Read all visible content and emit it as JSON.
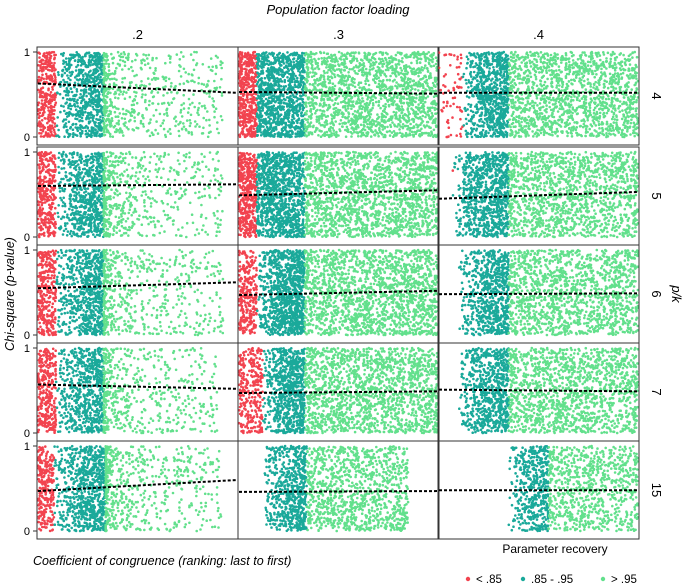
{
  "chart_data": {
    "type": "scatter",
    "layout": "faceted grid: columns = population factor loading, rows = p/k",
    "title_top": "Population factor loading",
    "row_strip_title": "p/k",
    "xlabel": "Coefficient of congruence (ranking: last to first)",
    "ylabel": "Chi-square (p-value)",
    "columns": [
      ".2",
      ".3",
      ".4"
    ],
    "rows": [
      "4",
      "5",
      "6",
      "7",
      "15"
    ],
    "ylim": [
      0,
      1
    ],
    "yticks": [
      "0",
      "1"
    ],
    "trend_line": "dashed black linear fit",
    "colors": {
      "low": "#f2434f",
      "mid": "#1aa99a",
      "high": "#62e08c"
    },
    "legend": {
      "title": "Parameter recovery",
      "position": "bottom-right",
      "entries": [
        {
          "key": "low",
          "label": "< .85"
        },
        {
          "key": "mid",
          "label": ".85 - .95"
        },
        {
          "key": "high",
          "label": "> .95"
        }
      ]
    },
    "panels": [
      {
        "col": ".2",
        "row": "4",
        "points": 2300,
        "red": [
          0.0,
          0.09
        ],
        "mid": [
          0.09,
          0.33
        ],
        "high": [
          0.33,
          0.93
        ],
        "high_falloff": 0.35,
        "mid_jitter": 0.03,
        "red_density": 1,
        "line": [
          0.63,
          0.52
        ]
      },
      {
        "col": ".3",
        "row": "4",
        "points": 3200,
        "red": [
          0.0,
          0.09
        ],
        "mid": [
          0.09,
          0.33
        ],
        "high": [
          0.33,
          1.0
        ],
        "high_falloff": 1.0,
        "mid_jitter": 0.0,
        "red_density": 1,
        "line": [
          0.53,
          0.51
        ]
      },
      {
        "col": ".4",
        "row": "4",
        "points": 2900,
        "red": [
          0.0,
          0.12
        ],
        "mid": [
          0.12,
          0.35
        ],
        "high": [
          0.35,
          1.0
        ],
        "high_falloff": 1.0,
        "mid_jitter": 0.05,
        "red_density": 0.12,
        "line": [
          0.52,
          0.52
        ]
      },
      {
        "col": ".2",
        "row": "5",
        "points": 2300,
        "red": [
          0.0,
          0.09
        ],
        "mid": [
          0.09,
          0.33
        ],
        "high": [
          0.33,
          0.93
        ],
        "high_falloff": 0.35,
        "mid_jitter": 0.03,
        "red_density": 1,
        "line": [
          0.6,
          0.62
        ]
      },
      {
        "col": ".3",
        "row": "5",
        "points": 3200,
        "red": [
          0.0,
          0.09
        ],
        "mid": [
          0.09,
          0.33
        ],
        "high": [
          0.33,
          1.0
        ],
        "high_falloff": 1.0,
        "mid_jitter": 0.0,
        "red_density": 1,
        "line": [
          0.49,
          0.55
        ]
      },
      {
        "col": ".4",
        "row": "5",
        "points": 2700,
        "red": [
          0.05,
          0.07
        ],
        "mid": [
          0.07,
          0.35
        ],
        "high": [
          0.35,
          1.0
        ],
        "high_falloff": 1.0,
        "mid_jitter": 0.06,
        "red_density": 0.01,
        "line": [
          0.45,
          0.53
        ]
      },
      {
        "col": ".2",
        "row": "6",
        "points": 2300,
        "red": [
          0.0,
          0.09
        ],
        "mid": [
          0.09,
          0.33
        ],
        "high": [
          0.33,
          0.93
        ],
        "high_falloff": 0.35,
        "mid_jitter": 0.03,
        "red_density": 1,
        "line": [
          0.55,
          0.62
        ]
      },
      {
        "col": ".3",
        "row": "6",
        "points": 3200,
        "red": [
          0.0,
          0.09
        ],
        "mid": [
          0.09,
          0.33
        ],
        "high": [
          0.33,
          1.0
        ],
        "high_falloff": 1.0,
        "mid_jitter": 0.01,
        "red_density": 0.6,
        "line": [
          0.47,
          0.52
        ]
      },
      {
        "col": ".4",
        "row": "6",
        "points": 2700,
        "red": [
          0.0,
          0.0
        ],
        "mid": [
          0.1,
          0.35
        ],
        "high": [
          0.35,
          1.0
        ],
        "high_falloff": 1.0,
        "mid_jitter": 0.07,
        "red_density": 0,
        "line": [
          0.48,
          0.49
        ]
      },
      {
        "col": ".2",
        "row": "7",
        "points": 2200,
        "red": [
          0.0,
          0.09
        ],
        "mid": [
          0.09,
          0.33
        ],
        "high": [
          0.33,
          0.9
        ],
        "high_falloff": 0.35,
        "mid_jitter": 0.03,
        "red_density": 1,
        "line": [
          0.57,
          0.52
        ]
      },
      {
        "col": ".3",
        "row": "7",
        "points": 3100,
        "red": [
          0.0,
          0.12
        ],
        "mid": [
          0.12,
          0.33
        ],
        "high": [
          0.33,
          1.0
        ],
        "high_falloff": 1.0,
        "mid_jitter": 0.04,
        "red_density": 0.5,
        "line": [
          0.47,
          0.49
        ]
      },
      {
        "col": ".4",
        "row": "7",
        "points": 2700,
        "red": [
          0.0,
          0.0
        ],
        "mid": [
          0.1,
          0.35
        ],
        "high": [
          0.35,
          1.0
        ],
        "high_falloff": 1.0,
        "mid_jitter": 0.08,
        "red_density": 0,
        "line": [
          0.51,
          0.49
        ]
      },
      {
        "col": ".2",
        "row": "15",
        "points": 2400,
        "red": [
          0.0,
          0.08
        ],
        "mid": [
          0.08,
          0.34
        ],
        "high": [
          0.34,
          0.92
        ],
        "high_falloff": 0.35,
        "mid_jitter": 0.02,
        "red_density": 0.9,
        "line": [
          0.47,
          0.6
        ]
      },
      {
        "col": ".3",
        "row": "15",
        "points": 2600,
        "red": [
          0.0,
          0.0
        ],
        "mid": [
          0.12,
          0.34
        ],
        "high": [
          0.34,
          0.85
        ],
        "high_falloff": 1.0,
        "mid_jitter": 0.07,
        "red_density": 0,
        "line": [
          0.46,
          0.47
        ]
      },
      {
        "col": ".4",
        "row": "15",
        "points": 2200,
        "red": [
          0.0,
          0.0
        ],
        "mid": [
          0.35,
          0.55
        ],
        "high": [
          0.55,
          1.0
        ],
        "high_falloff": 1.0,
        "mid_jitter": 0.08,
        "red_density": 0,
        "line": [
          0.48,
          0.48
        ]
      }
    ]
  }
}
